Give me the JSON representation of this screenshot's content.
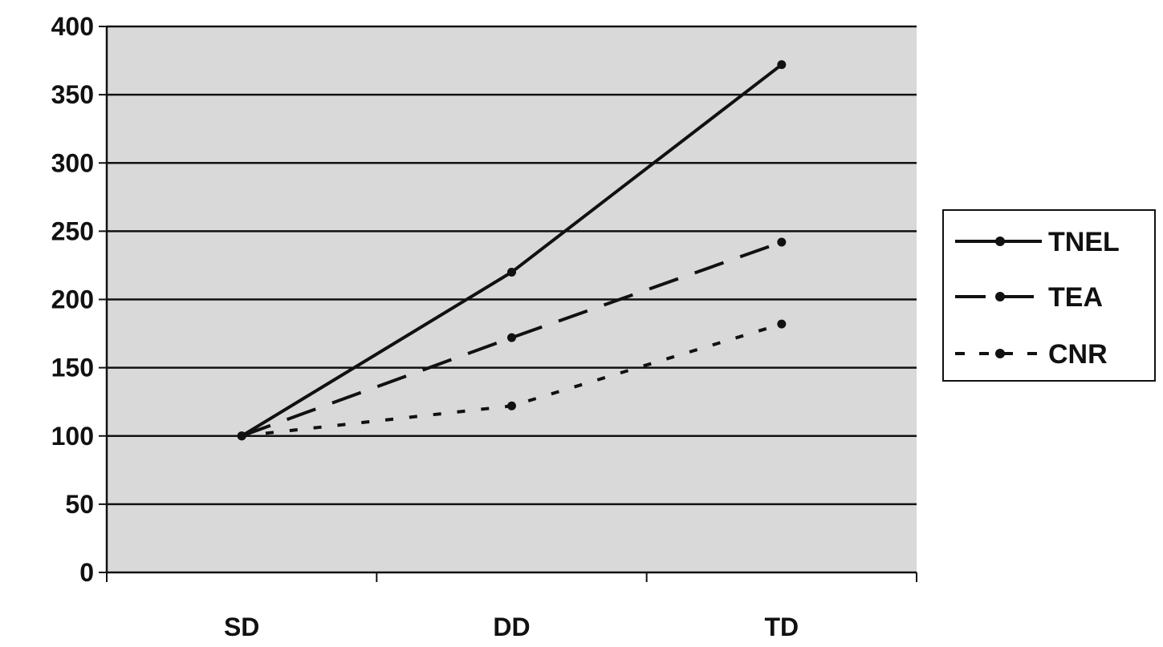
{
  "chart_data": {
    "type": "line",
    "categories": [
      "SD",
      "DD",
      "TD"
    ],
    "series": [
      {
        "name": "TNEL",
        "values": [
          100,
          220,
          372
        ],
        "dash": "solid"
      },
      {
        "name": "TEA",
        "values": [
          100,
          172,
          242
        ],
        "dash": "dashed"
      },
      {
        "name": "CNR",
        "values": [
          100,
          122,
          182
        ],
        "dash": "dotted"
      }
    ],
    "ylim": [
      0,
      400
    ],
    "yticks": [
      0,
      50,
      100,
      150,
      200,
      250,
      300,
      350,
      400
    ],
    "grid": true,
    "legend_position": "right",
    "plot_background": "#d9d9d9",
    "line_color": "#111111"
  }
}
